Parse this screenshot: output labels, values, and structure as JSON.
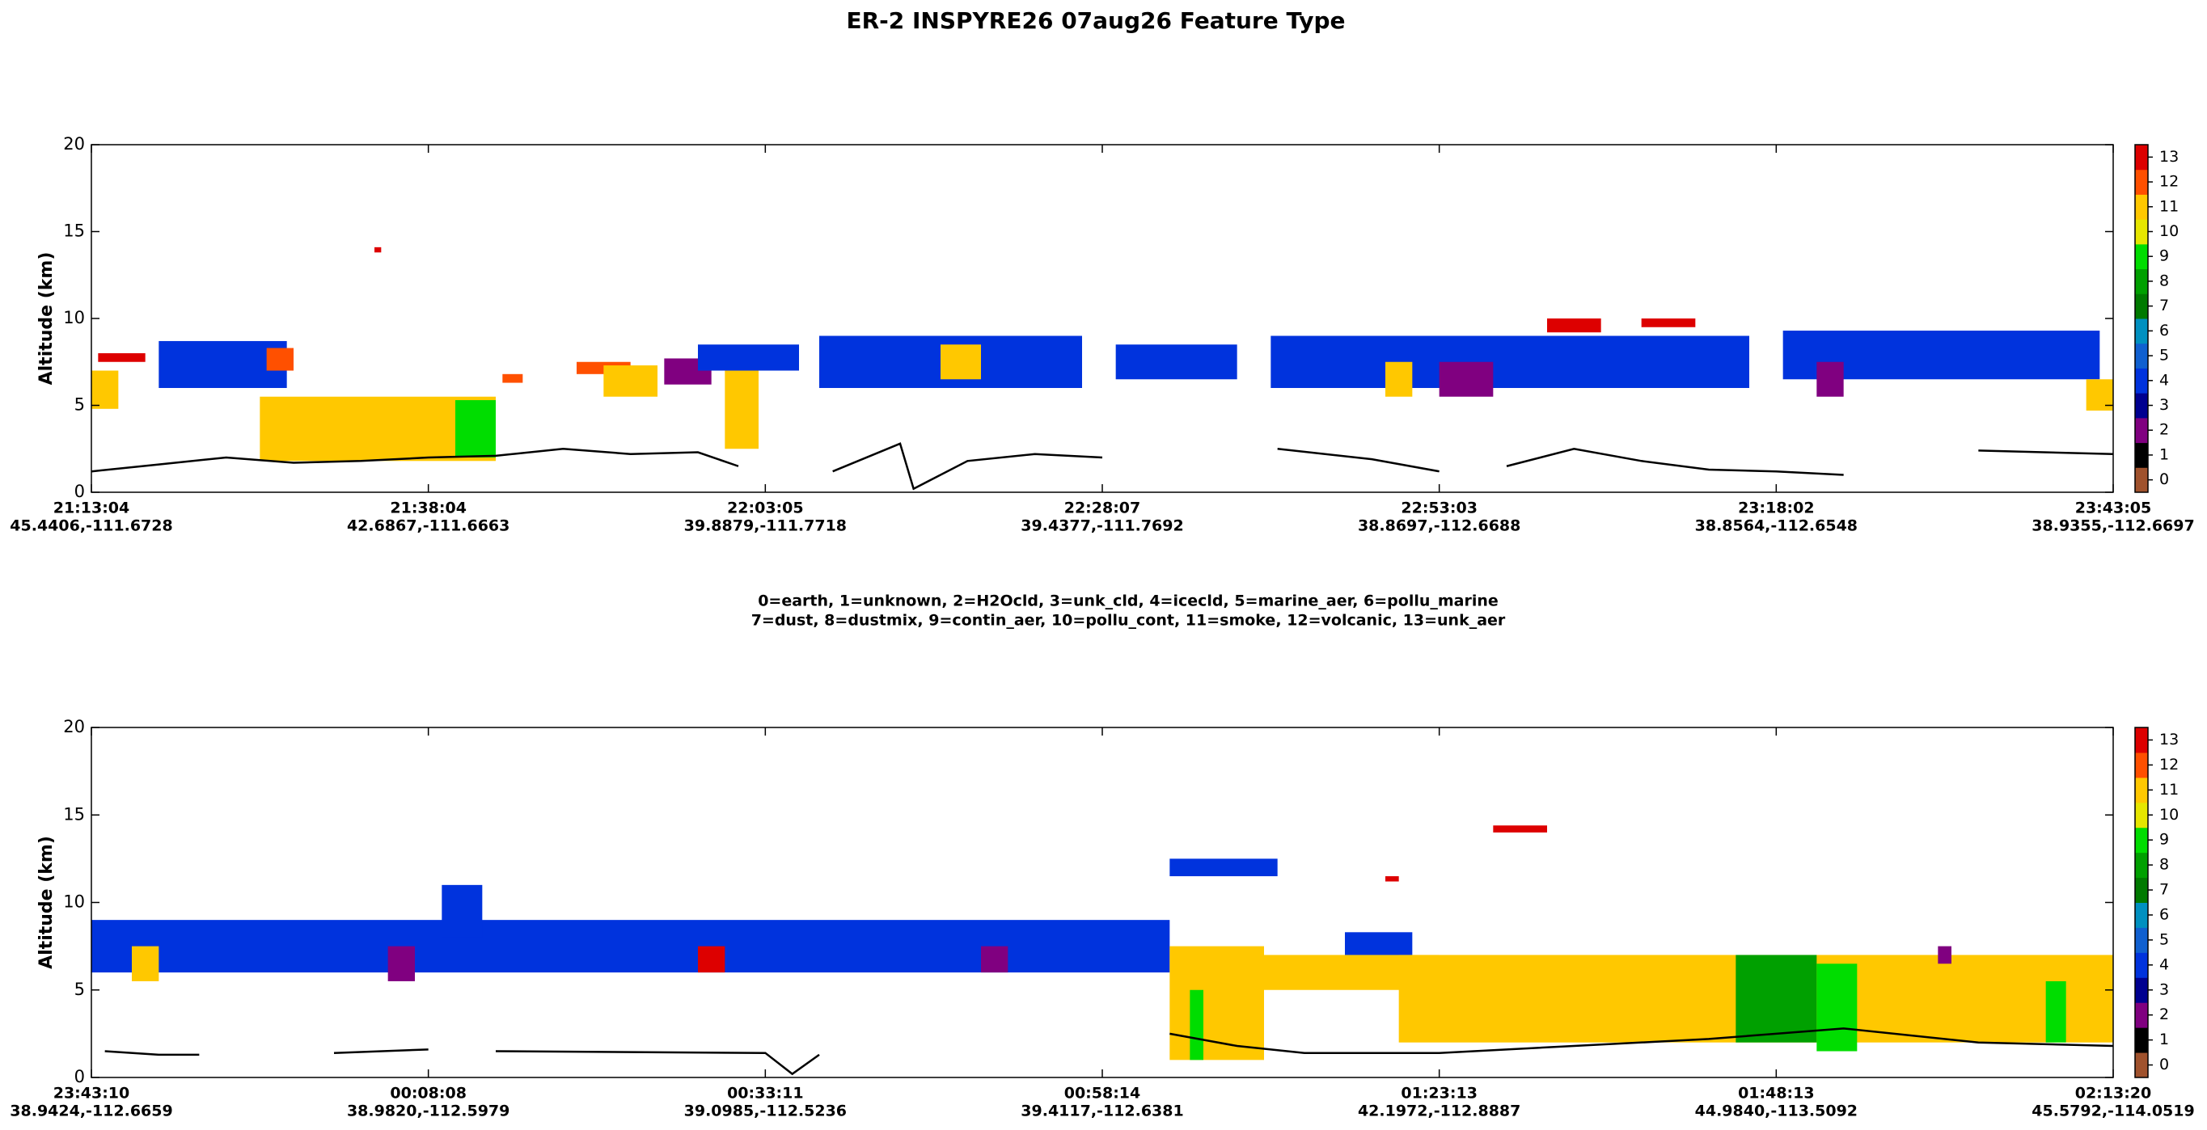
{
  "title": "ER-2  INSPYRE26  07aug26  Feature Type",
  "legend_lines": [
    "0=earth, 1=unknown, 2=H2Ocld, 3=unk_cld, 4=icecld, 5=marine_aer, 6=pollu_marine",
    "7=dust, 8=dustmix, 9=contin_aer, 10=pollu_cont, 11=smoke, 12=volcanic, 13=unk_aer"
  ],
  "colorbar": {
    "ticks": [
      0,
      1,
      2,
      3,
      4,
      5,
      6,
      7,
      8,
      9,
      10,
      11,
      12,
      13
    ],
    "colors": [
      "#a0522d",
      "#000000",
      "#800080",
      "#000090",
      "#0033dd",
      "#1060d0",
      "#0090c0",
      "#007a00",
      "#00a000",
      "#00dd00",
      "#e6e600",
      "#ffc800",
      "#ff5000",
      "#dd0000"
    ]
  },
  "chart_data": [
    {
      "type": "curtain",
      "ylabel": "Altitude (km)",
      "xlim": [
        0,
        150
      ],
      "ylim": [
        0,
        20
      ],
      "yticks": [
        0,
        5,
        10,
        15,
        20
      ],
      "xticks": [
        {
          "value": 0,
          "label": "21:13:04"
        },
        {
          "value": 25,
          "label": "21:38:04"
        },
        {
          "value": 50,
          "label": "22:03:05"
        },
        {
          "value": 75,
          "label": "22:28:07"
        },
        {
          "value": 100,
          "label": "22:53:03"
        },
        {
          "value": 125,
          "label": "23:18:02"
        },
        {
          "value": 150,
          "label": "23:43:05"
        }
      ],
      "xtick_coords": [
        "45.4406,-111.6728",
        "42.6867,-111.6663",
        "39.8879,-111.7718",
        "39.4377,-111.7692",
        "38.8697,-112.6688",
        "38.8564,-112.6548",
        "38.9355,-112.6697"
      ],
      "features": [
        {
          "x": [
            0,
            2
          ],
          "y": [
            4.8,
            7
          ],
          "class": 11
        },
        {
          "x": [
            0.5,
            4
          ],
          "y": [
            7.5,
            8
          ],
          "class": 13
        },
        {
          "x": [
            5,
            14.5
          ],
          "y": [
            6,
            8.7
          ],
          "class": 4
        },
        {
          "x": [
            13,
            15
          ],
          "y": [
            7,
            8.3
          ],
          "class": 12
        },
        {
          "x": [
            12.5,
            30
          ],
          "y": [
            1.8,
            5.5
          ],
          "class": 11
        },
        {
          "x": [
            27,
            30
          ],
          "y": [
            2,
            5.3
          ],
          "class": 9
        },
        {
          "x": [
            21,
            21.5
          ],
          "y": [
            13.8,
            14.1
          ],
          "class": 13
        },
        {
          "x": [
            30.5,
            32
          ],
          "y": [
            6.3,
            6.8
          ],
          "class": 12
        },
        {
          "x": [
            36,
            40
          ],
          "y": [
            6.8,
            7.5
          ],
          "class": 12
        },
        {
          "x": [
            38,
            42
          ],
          "y": [
            5.5,
            7.3
          ],
          "class": 11
        },
        {
          "x": [
            42.5,
            46
          ],
          "y": [
            6.2,
            7.7
          ],
          "class": 2
        },
        {
          "x": [
            45,
            52.5
          ],
          "y": [
            7,
            8.5
          ],
          "class": 4
        },
        {
          "x": [
            47,
            49.5
          ],
          "y": [
            2.5,
            7
          ],
          "class": 11
        },
        {
          "x": [
            54,
            73.5
          ],
          "y": [
            6,
            9
          ],
          "class": 4
        },
        {
          "x": [
            63,
            66
          ],
          "y": [
            6.5,
            8.5
          ],
          "class": 11
        },
        {
          "x": [
            76,
            85
          ],
          "y": [
            6.5,
            8.5
          ],
          "class": 4
        },
        {
          "x": [
            87.5,
            123
          ],
          "y": [
            6,
            9
          ],
          "class": 4
        },
        {
          "x": [
            96,
            98
          ],
          "y": [
            5.5,
            7.5
          ],
          "class": 11
        },
        {
          "x": [
            100,
            104
          ],
          "y": [
            5.5,
            7.5
          ],
          "class": 2
        },
        {
          "x": [
            108,
            112
          ],
          "y": [
            9.2,
            10
          ],
          "class": 13
        },
        {
          "x": [
            115,
            119
          ],
          "y": [
            9.5,
            10
          ],
          "class": 13
        },
        {
          "x": [
            125.5,
            149
          ],
          "y": [
            6.5,
            9.3
          ],
          "class": 4
        },
        {
          "x": [
            128,
            130
          ],
          "y": [
            5.5,
            7.5
          ],
          "class": 2
        },
        {
          "x": [
            148,
            150
          ],
          "y": [
            4.7,
            6.5
          ],
          "class": 11
        }
      ],
      "surface": {
        "x": [
          0,
          5,
          10,
          15,
          20,
          25,
          30,
          35,
          40,
          45,
          48,
          49,
          55,
          60,
          61,
          65,
          70,
          75,
          76,
          88,
          95,
          100,
          101,
          105,
          110,
          115,
          120,
          125,
          130,
          131,
          140,
          150
        ],
        "y": [
          1.2,
          1.6,
          2.0,
          1.7,
          1.8,
          2.0,
          2.1,
          2.5,
          2.2,
          2.3,
          1.5,
          null,
          1.2,
          2.8,
          0.2,
          1.8,
          2.2,
          2.0,
          null,
          2.5,
          1.9,
          1.2,
          null,
          1.5,
          2.5,
          1.8,
          1.3,
          1.2,
          1.0,
          null,
          2.4,
          2.2
        ]
      }
    },
    {
      "type": "curtain",
      "ylabel": "Altitude (km)",
      "xlim": [
        0,
        150
      ],
      "ylim": [
        0,
        20
      ],
      "yticks": [
        0,
        5,
        10,
        15,
        20
      ],
      "xticks": [
        {
          "value": 0,
          "label": "23:43:10"
        },
        {
          "value": 25,
          "label": "00:08:08"
        },
        {
          "value": 50,
          "label": "00:33:11"
        },
        {
          "value": 75,
          "label": "00:58:14"
        },
        {
          "value": 100,
          "label": "01:23:13"
        },
        {
          "value": 125,
          "label": "01:48:13"
        },
        {
          "value": 150,
          "label": "02:13:20"
        }
      ],
      "xtick_coords": [
        "38.9424,-112.6659",
        "38.9820,-112.5979",
        "39.0985,-112.5236",
        "39.4117,-112.6381",
        "42.1972,-112.8887",
        "44.9840,-113.5092",
        "45.5792,-114.0519"
      ],
      "features": [
        {
          "x": [
            0,
            80
          ],
          "y": [
            6,
            9
          ],
          "class": 4
        },
        {
          "x": [
            26,
            29
          ],
          "y": [
            8,
            11
          ],
          "class": 4
        },
        {
          "x": [
            3,
            5
          ],
          "y": [
            5.5,
            7.5
          ],
          "class": 11
        },
        {
          "x": [
            22,
            24
          ],
          "y": [
            5.5,
            7.5
          ],
          "class": 2
        },
        {
          "x": [
            45,
            47
          ],
          "y": [
            6,
            7.5
          ],
          "class": 13
        },
        {
          "x": [
            66,
            68
          ],
          "y": [
            6,
            7.5
          ],
          "class": 2
        },
        {
          "x": [
            80,
            87
          ],
          "y": [
            1,
            7.5
          ],
          "class": 11
        },
        {
          "x": [
            81.5,
            82.5
          ],
          "y": [
            1,
            5
          ],
          "class": 9
        },
        {
          "x": [
            80,
            88
          ],
          "y": [
            11.5,
            12.5
          ],
          "class": 4
        },
        {
          "x": [
            87,
            100
          ],
          "y": [
            5,
            7
          ],
          "class": 11
        },
        {
          "x": [
            93,
            98
          ],
          "y": [
            7,
            8.3
          ],
          "class": 4
        },
        {
          "x": [
            96,
            97
          ],
          "y": [
            11.2,
            11.5
          ],
          "class": 13
        },
        {
          "x": [
            97,
            150
          ],
          "y": [
            2,
            7
          ],
          "class": 11
        },
        {
          "x": [
            104,
            108
          ],
          "y": [
            14,
            14.4
          ],
          "class": 13
        },
        {
          "x": [
            122,
            128
          ],
          "y": [
            2,
            7
          ],
          "class": 8
        },
        {
          "x": [
            128,
            131
          ],
          "y": [
            1.5,
            6.5
          ],
          "class": 9
        },
        {
          "x": [
            137,
            138
          ],
          "y": [
            6.5,
            7.5
          ],
          "class": 2
        },
        {
          "x": [
            145,
            146.5
          ],
          "y": [
            2,
            5.5
          ],
          "class": 9
        }
      ],
      "surface": {
        "x": [
          1,
          5,
          8,
          9,
          18,
          25,
          27,
          30,
          50,
          52,
          54,
          55,
          80,
          85,
          90,
          100,
          110,
          120,
          125,
          130,
          140,
          150
        ],
        "y": [
          1.5,
          1.3,
          1.3,
          null,
          1.4,
          1.6,
          null,
          1.5,
          1.4,
          0.2,
          1.3,
          null,
          2.5,
          1.8,
          1.4,
          1.4,
          1.8,
          2.2,
          2.5,
          2.8,
          2.0,
          1.8
        ]
      }
    }
  ]
}
